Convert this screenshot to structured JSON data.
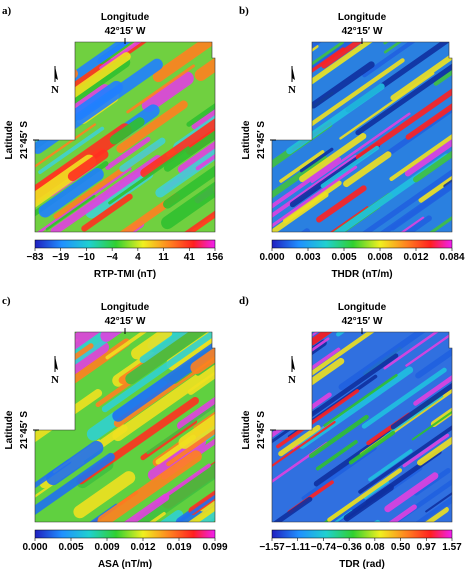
{
  "panels": [
    {
      "label": "a)",
      "x_axis_label": "Longitude",
      "x_tick": "42°15′ W",
      "y_axis_label": "Latitude",
      "y_tick": "21°45′ S",
      "north": "N",
      "colorbar_ticks": [
        "−83",
        "−19",
        "−10",
        "−4",
        "4",
        "11",
        "41",
        "156"
      ],
      "colorbar_label": "RTP-TMI (nT)"
    },
    {
      "label": "b)",
      "x_axis_label": "Longitude",
      "x_tick": "42°15′ W",
      "y_axis_label": "Latitude",
      "y_tick": "21°45′ S",
      "north": "N",
      "colorbar_ticks": [
        "0.000",
        "0.003",
        "0.005",
        "0.008",
        "0.012",
        "0.084"
      ],
      "colorbar_label": "THDR (nT/m)"
    },
    {
      "label": "c)",
      "x_axis_label": "Longitude",
      "x_tick": "42°15′ W",
      "y_axis_label": "Latitude",
      "y_tick": "21°45′ S",
      "north": "N",
      "colorbar_ticks": [
        "0.000",
        "0.005",
        "0.009",
        "0.012",
        "0.019",
        "0.099"
      ],
      "colorbar_label": "ASA (nT/m)"
    },
    {
      "label": "d)",
      "x_axis_label": "Longitude",
      "x_tick": "42°15′ W",
      "y_axis_label": "Latitude",
      "y_tick": "21°45′ S",
      "north": "N",
      "colorbar_ticks": [
        "−1.57",
        "−1.11",
        "−0.74",
        "−0.36",
        "0.08",
        "0.50",
        "0.97",
        "1.57"
      ],
      "colorbar_label": "TDR (rad)"
    }
  ]
}
